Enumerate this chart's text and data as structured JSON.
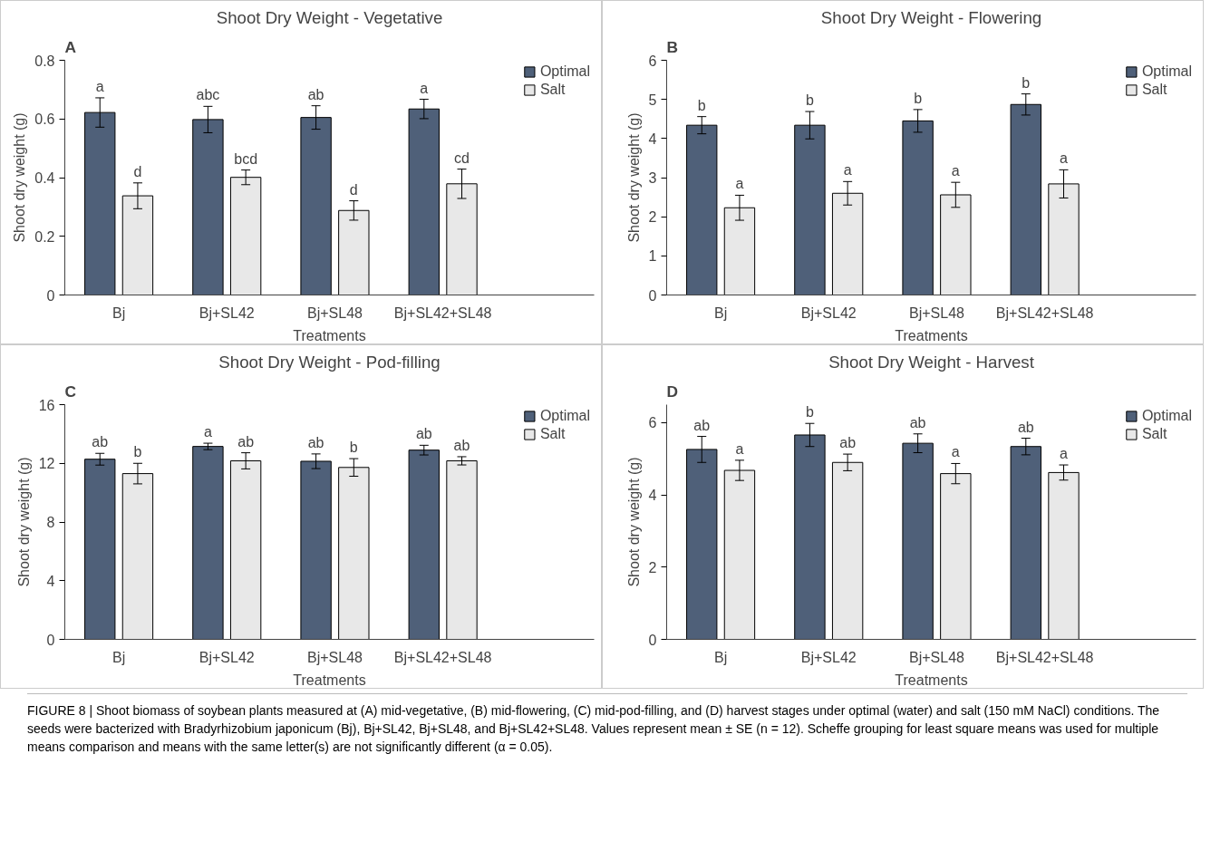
{
  "chart_data": [
    {
      "type": "bar",
      "title": "Shoot Dry Weight - Vegetative",
      "xlabel": "Treatments",
      "ylabel": "Shoot dry weight (g)",
      "categories": [
        "Bj",
        "Bj+SL42",
        "Bj+SL48",
        "Bj+SL42+SL48"
      ],
      "ylim": [
        0,
        0.8
      ],
      "yticks": [
        {
          "value": 0,
          "label": "0"
        },
        0.2,
        0.4,
        0.6,
        0.8
      ],
      "legend": "top right",
      "grid": false,
      "series": [
        {
          "name": "Optimal",
          "color": "#4f6079",
          "values": [
            0.622,
            0.598,
            0.605,
            0.634
          ],
          "errors": [
            0.05,
            0.045,
            0.04,
            0.033
          ]
        },
        {
          "name": "Salt",
          "color": "#e8e8e8",
          "values": [
            0.338,
            0.401,
            0.288,
            0.379
          ],
          "errors": [
            0.044,
            0.025,
            0.033,
            0.05
          ]
        }
      ],
      "annotations": [
        "A",
        "a",
        "d",
        "abc",
        "bcd",
        "ab",
        "d",
        "a",
        "cd"
      ]
    },
    {
      "type": "bar",
      "title": "Shoot Dry Weight - Flowering",
      "xlabel": "Treatments",
      "ylabel": "Shoot dry weight (g)",
      "categories": [
        "Bj",
        "Bj+SL42",
        "Bj+SL48",
        "Bj+SL42+SL48"
      ],
      "ylim": [
        0,
        6
      ],
      "yticks": [
        0,
        1,
        2,
        3,
        4,
        5,
        6
      ],
      "legend": "top right",
      "grid": false,
      "series": [
        {
          "name": "Optimal",
          "color": "#4f6079",
          "values": [
            4.34,
            4.34,
            4.45,
            4.87
          ],
          "errors": [
            0.22,
            0.35,
            0.29,
            0.27
          ]
        },
        {
          "name": "Salt",
          "color": "#e8e8e8",
          "values": [
            2.23,
            2.6,
            2.56,
            2.84
          ],
          "errors": [
            0.32,
            0.3,
            0.32,
            0.36
          ]
        }
      ],
      "annotations": [
        "B",
        "b",
        "a",
        "b",
        "a",
        "b",
        "a",
        "b",
        "a"
      ]
    },
    {
      "type": "bar",
      "title": "Shoot Dry Weight - Pod-filling",
      "xlabel": "Treatments",
      "ylabel": "Shoot dry weight (g)",
      "categories": [
        "Bj",
        "Bj+SL42",
        "Bj+SL48",
        "Bj+SL42+SL48"
      ],
      "ylim": [
        0,
        16
      ],
      "yticks": [
        0,
        4,
        8,
        12,
        16
      ],
      "legend": "top right",
      "grid": false,
      "series": [
        {
          "name": "Optimal",
          "color": "#4f6079",
          "values": [
            12.28,
            13.15,
            12.14,
            12.9
          ],
          "errors": [
            0.4,
            0.22,
            0.5,
            0.33
          ]
        },
        {
          "name": "Salt",
          "color": "#e8e8e8",
          "values": [
            11.3,
            12.17,
            11.72,
            12.17
          ],
          "errors": [
            0.7,
            0.55,
            0.6,
            0.28
          ]
        }
      ],
      "annotations": [
        "C",
        "ab",
        "b",
        "a",
        "ab",
        "ab",
        "b",
        "ab",
        "ab"
      ]
    },
    {
      "type": "bar",
      "title": "Shoot Dry Weight - Harvest",
      "xlabel": "Treatments",
      "ylabel": "Shoot dry weight (g)",
      "categories": [
        "Bj",
        "Bj+SL42",
        "Bj+SL48",
        "Bj+SL42+SL48"
      ],
      "ylim": [
        0,
        6.5
      ],
      "yticks": [
        0,
        2,
        4,
        6
      ],
      "legend": "top right",
      "grid": false,
      "series": [
        {
          "name": "Optimal",
          "color": "#4f6079",
          "values": [
            5.26,
            5.66,
            5.43,
            5.34
          ],
          "errors": [
            0.36,
            0.32,
            0.26,
            0.23
          ]
        },
        {
          "name": "Salt",
          "color": "#e8e8e8",
          "values": [
            4.68,
            4.9,
            4.59,
            4.62
          ],
          "errors": [
            0.28,
            0.23,
            0.28,
            0.21
          ]
        }
      ],
      "annotations": [
        "D",
        "ab",
        "a",
        "b",
        "ab",
        "ab",
        "a",
        "ab",
        "a",
        "FIGURE 8 | Shoot biomass of soybean plants measured at (A) mid-vegetative, (B) mid-flowering, (C) mid-pod-filling, and (D) harvest stages under optimal (water) and salt (150 mM NaCl) conditions. The seeds were bacterized with Bradyrhizobium japonicum (Bj), Bj+SL42, Bj+SL48, and Bj+SL42+SL48. Values represent mean ± SE (n = 12). Scheffe grouping for least square means was used for multiple means comparison and means with the same letter(s) are not significantly different (α = 0.05)."
      ]
    }
  ]
}
